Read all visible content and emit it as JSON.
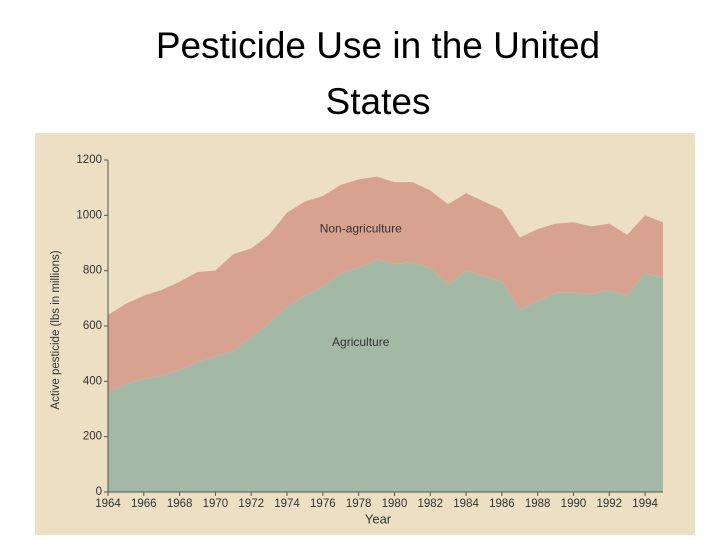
{
  "chart_data": {
    "type": "stacked-area",
    "title": "Pesticide Use in the United States",
    "x_label": "Year",
    "y_label": "Active pesticide (lbs in millions)",
    "x": [
      1964,
      1965,
      1966,
      1967,
      1968,
      1969,
      1970,
      1971,
      1972,
      1973,
      1974,
      1975,
      1976,
      1977,
      1978,
      1979,
      1980,
      1981,
      1982,
      1983,
      1984,
      1985,
      1986,
      1987,
      1988,
      1989,
      1990,
      1991,
      1992,
      1993,
      1994,
      1995
    ],
    "series": [
      {
        "name": "Agriculture",
        "color": "#a3b9a6",
        "values": [
          360,
          390,
          410,
          420,
          440,
          470,
          490,
          510,
          560,
          610,
          670,
          710,
          740,
          790,
          810,
          840,
          825,
          830,
          810,
          750,
          800,
          780,
          760,
          660,
          690,
          720,
          720,
          715,
          730,
          710,
          790,
          775
        ]
      },
      {
        "name": "Non-agriculture",
        "color": "#d8a291",
        "values": [
          280,
          290,
          300,
          310,
          320,
          325,
          310,
          350,
          320,
          320,
          340,
          340,
          330,
          320,
          320,
          300,
          295,
          290,
          280,
          290,
          280,
          270,
          260,
          260,
          260,
          250,
          255,
          245,
          240,
          220,
          210,
          200
        ]
      }
    ],
    "xlim": [
      1964,
      1995
    ],
    "xticks": [
      1964,
      1966,
      1968,
      1970,
      1972,
      1974,
      1976,
      1978,
      1980,
      1982,
      1984,
      1986,
      1988,
      1990,
      1992,
      1994
    ],
    "ylim": [
      0,
      1200
    ],
    "yticks": [
      0,
      200,
      400,
      600,
      800,
      1000,
      1200
    ]
  }
}
